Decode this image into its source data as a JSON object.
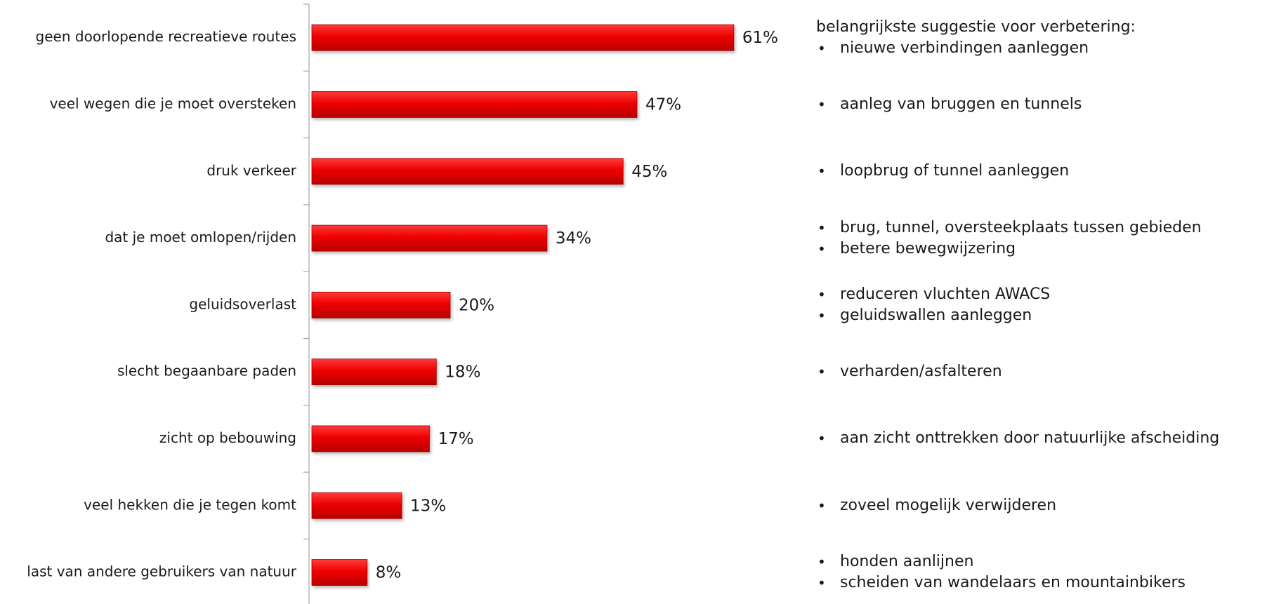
{
  "chart_data": {
    "type": "bar",
    "orientation": "horizontal",
    "categories": [
      "geen doorlopende recreatieve routes",
      "veel wegen die je moet oversteken",
      "druk verkeer",
      "dat je moet omlopen/rijden",
      "geluidsoverlast",
      "slecht begaanbare paden",
      "zicht op bebouwing",
      "veel hekken die je tegen komt",
      "last van andere gebruikers van natuur"
    ],
    "values": [
      61,
      47,
      45,
      34,
      20,
      18,
      17,
      13,
      8
    ],
    "value_labels": [
      "61%",
      "47%",
      "45%",
      "34%",
      "20%",
      "18%",
      "17%",
      "13%",
      "8%"
    ],
    "unit": "%",
    "bar_color": "#ee0000",
    "grid": false,
    "legend": "none"
  },
  "suggestions_panel": {
    "title": "belangrijkste suggestie voor verbetering:",
    "groups": [
      [
        "nieuwe verbindingen aanleggen"
      ],
      [
        "aanleg van bruggen en tunnels"
      ],
      [
        "loopbrug of tunnel aanleggen"
      ],
      [
        "brug, tunnel, oversteekplaats tussen gebieden",
        "betere bewegwijzering"
      ],
      [
        "reduceren vluchten AWACS",
        "geluidswallen aanleggen"
      ],
      [
        "verharden/asfalteren"
      ],
      [
        "aan zicht onttrekken door natuurlijke afscheiding"
      ],
      [
        "zoveel mogelijk verwijderen"
      ],
      [
        "honden aanlijnen",
        "scheiden van wandelaars en mountainbikers"
      ]
    ]
  }
}
